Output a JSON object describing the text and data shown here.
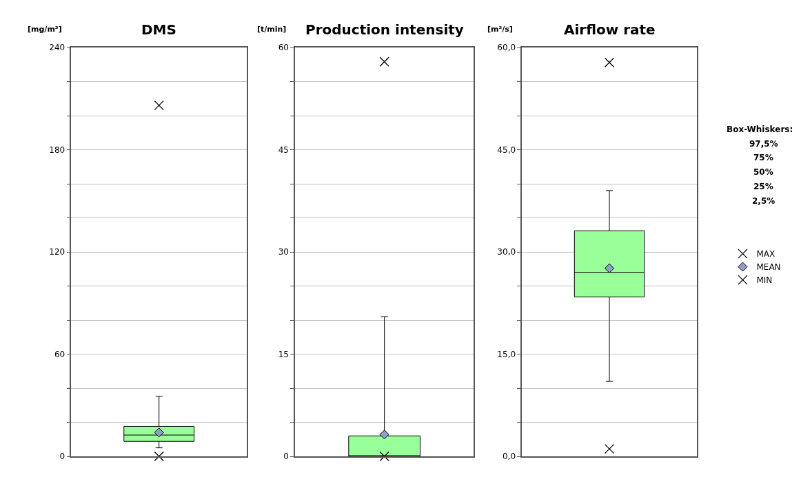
{
  "chart_data": [
    {
      "type": "box",
      "title": "DMS",
      "ylabel": "[mg/m³]",
      "categories": [
        null
      ],
      "ylim": [
        0,
        240
      ],
      "grid": "y",
      "legend": false,
      "yticks": [
        0,
        {
          "value": 20,
          "label": null
        },
        {
          "value": 40,
          "label": null
        },
        60,
        {
          "value": 80,
          "label": null
        },
        {
          "value": 100,
          "label": null
        },
        120,
        {
          "value": 140,
          "label": null
        },
        {
          "value": 160,
          "label": null
        },
        180,
        {
          "value": 200,
          "label": null
        },
        {
          "value": 220,
          "label": null
        },
        240
      ],
      "series": [
        {
          "color": "#99ff99",
          "boxes": [
            {
              "low": 5.0,
              "q1": 8.8,
              "median": 12.5,
              "q3": 17.6,
              "high": 35.3
            }
          ]
        },
        {
          "type": "scatter",
          "marker": "cross",
          "color": "#000000",
          "values": [
            206
          ]
        },
        {
          "type": "scatter",
          "marker": "diamond",
          "color": "#8ea0c8",
          "values": [
            14.0
          ]
        },
        {
          "type": "scatter",
          "marker": "cross",
          "color": "#000000",
          "values": [
            0
          ]
        }
      ]
    },
    {
      "type": "box",
      "title": "Production intensity",
      "ylabel": "[t/min]",
      "categories": [
        null
      ],
      "ylim": [
        0,
        60
      ],
      "grid": "y",
      "legend": false,
      "yticks": [
        0,
        {
          "value": 5,
          "label": null
        },
        {
          "value": 10,
          "label": null
        },
        15,
        {
          "value": 20,
          "label": null
        },
        {
          "value": 25,
          "label": null
        },
        30,
        {
          "value": 35,
          "label": null
        },
        {
          "value": 40,
          "label": null
        },
        45,
        {
          "value": 50,
          "label": null
        },
        {
          "value": 55,
          "label": null
        },
        60
      ],
      "series": [
        {
          "color": "#99ff99",
          "boxes": [
            {
              "low": 0,
              "q1": 0,
              "median": 0,
              "q3": 3.0,
              "high": 20.5
            }
          ]
        },
        {
          "type": "scatter",
          "marker": "cross",
          "color": "#000000",
          "values": [
            57.9
          ]
        },
        {
          "type": "scatter",
          "marker": "diamond",
          "color": "#8ea0c8",
          "values": [
            3.2
          ]
        },
        {
          "type": "scatter",
          "marker": "cross",
          "color": "#000000",
          "values": [
            0
          ]
        }
      ]
    },
    {
      "type": "box",
      "title": "Airflow rate",
      "ylabel": "[m³/s]",
      "categories": [
        null
      ],
      "ylim": [
        0,
        60
      ],
      "grid": "y",
      "legend": "right",
      "yticks": [
        {
          "value": 0,
          "label": "0,0"
        },
        {
          "value": 5,
          "label": null
        },
        {
          "value": 10,
          "label": null
        },
        {
          "value": 15,
          "label": "15,0"
        },
        {
          "value": 20,
          "label": null
        },
        {
          "value": 25,
          "label": null
        },
        {
          "value": 30,
          "label": "30,0"
        },
        {
          "value": 35,
          "label": null
        },
        {
          "value": 40,
          "label": null
        },
        {
          "value": 45,
          "label": "45,0"
        },
        {
          "value": 50,
          "label": null
        },
        {
          "value": 55,
          "label": null
        },
        {
          "value": 60,
          "label": "60,0"
        }
      ],
      "annotations": [
        "Box-Whiskers:",
        "97,5%",
        "75%",
        "50%",
        "25%",
        "2,5%"
      ],
      "series": [
        {
          "color": "#99ff99",
          "boxes": [
            {
              "low": 11.0,
              "q1": 23.4,
              "median": 27.0,
              "q3": 33.1,
              "high": 39.0
            }
          ]
        },
        {
          "type": "scatter",
          "name": "MAX",
          "marker": "cross",
          "color": "#000000",
          "values": [
            57.8
          ]
        },
        {
          "type": "scatter",
          "name": "MEAN",
          "marker": "diamond",
          "color": "#8ea0c8",
          "values": [
            27.6
          ]
        },
        {
          "type": "scatter",
          "name": "MIN",
          "marker": "cross",
          "color": "#000000",
          "values": [
            1.1
          ]
        }
      ]
    }
  ]
}
